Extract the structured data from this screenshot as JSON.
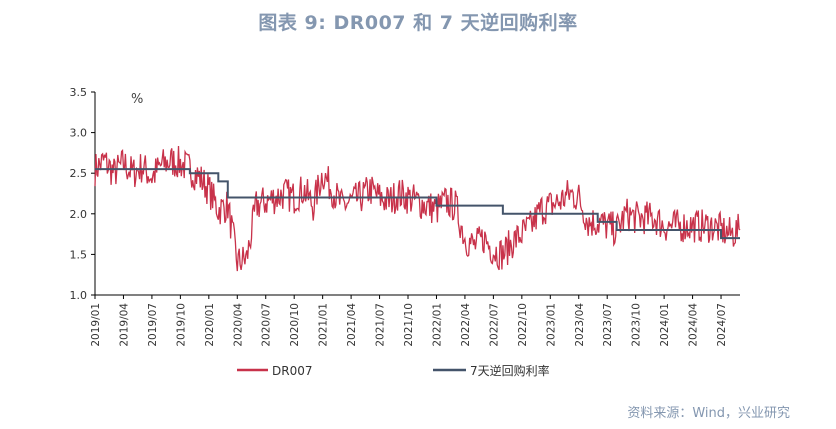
{
  "title": "图表 9:  DR007 和 7 天逆回购利率",
  "source": "资料来源：Wind，兴业研究",
  "chart_data": {
    "type": "line",
    "unit_label": "%",
    "ylim": [
      1.0,
      3.5
    ],
    "y_ticks": [
      "1.0",
      "1.5",
      "2.0",
      "2.5",
      "3.0",
      "3.5"
    ],
    "x_range": [
      "2019-01",
      "2024-09"
    ],
    "x_ticks": [
      "2019/01",
      "2019/04",
      "2019/07",
      "2019/10",
      "2020/01",
      "2020/04",
      "2020/07",
      "2020/10",
      "2021/01",
      "2021/04",
      "2021/07",
      "2021/10",
      "2022/01",
      "2022/04",
      "2022/07",
      "2022/10",
      "2023/01",
      "2023/04",
      "2023/07",
      "2023/10",
      "2024/01",
      "2024/04",
      "2024/07"
    ],
    "grid": false,
    "legend_position": "bottom",
    "colors": {
      "dr007": "#C8324A",
      "reverse_repo": "#44546A"
    },
    "series": [
      {
        "name": "DR007",
        "x": [
          "2019-01",
          "2019-02",
          "2019-03",
          "2019-04",
          "2019-05",
          "2019-06",
          "2019-07",
          "2019-08",
          "2019-09",
          "2019-10",
          "2019-11",
          "2019-12",
          "2020-01",
          "2020-02",
          "2020-03",
          "2020-04",
          "2020-05",
          "2020-06",
          "2020-07",
          "2020-08",
          "2020-09",
          "2020-10",
          "2020-11",
          "2020-12",
          "2021-01",
          "2021-02",
          "2021-03",
          "2021-04",
          "2021-05",
          "2021-06",
          "2021-07",
          "2021-08",
          "2021-09",
          "2021-10",
          "2021-11",
          "2021-12",
          "2022-01",
          "2022-02",
          "2022-03",
          "2022-04",
          "2022-05",
          "2022-06",
          "2022-07",
          "2022-08",
          "2022-09",
          "2022-10",
          "2022-11",
          "2022-12",
          "2023-01",
          "2023-02",
          "2023-03",
          "2023-04",
          "2023-05",
          "2023-06",
          "2023-07",
          "2023-08",
          "2023-09",
          "2023-10",
          "2023-11",
          "2023-12",
          "2024-01",
          "2024-02",
          "2024-03",
          "2024-04",
          "2024-05",
          "2024-06",
          "2024-07",
          "2024-08",
          "2024-09"
        ],
        "values": [
          2.55,
          2.65,
          2.5,
          2.62,
          2.5,
          2.58,
          2.45,
          2.6,
          2.65,
          2.62,
          2.55,
          2.45,
          2.3,
          2.05,
          2.1,
          1.4,
          1.45,
          2.1,
          2.15,
          2.2,
          2.25,
          2.2,
          2.3,
          2.1,
          2.5,
          2.3,
          2.1,
          2.15,
          2.2,
          2.3,
          2.2,
          2.15,
          2.25,
          2.2,
          2.15,
          2.1,
          2.05,
          2.15,
          2.1,
          1.7,
          1.6,
          1.7,
          1.55,
          1.5,
          1.65,
          1.75,
          1.85,
          2.05,
          2.1,
          2.15,
          2.25,
          2.2,
          1.9,
          1.9,
          1.85,
          1.8,
          2.0,
          1.95,
          1.95,
          1.95,
          1.85,
          1.85,
          1.85,
          1.85,
          1.85,
          1.85,
          1.8,
          1.75,
          1.8
        ]
      },
      {
        "name": "7天逆回购利率",
        "step": true,
        "points": [
          [
            "2019-01",
            2.55
          ],
          [
            "2019-11",
            2.5
          ],
          [
            "2020-02",
            2.4
          ],
          [
            "2020-03",
            2.2
          ],
          [
            "2022-01",
            2.1
          ],
          [
            "2022-08",
            2.0
          ],
          [
            "2023-06",
            1.9
          ],
          [
            "2023-08",
            1.8
          ],
          [
            "2024-07",
            1.7
          ],
          [
            "2024-09",
            1.7
          ]
        ]
      }
    ]
  }
}
